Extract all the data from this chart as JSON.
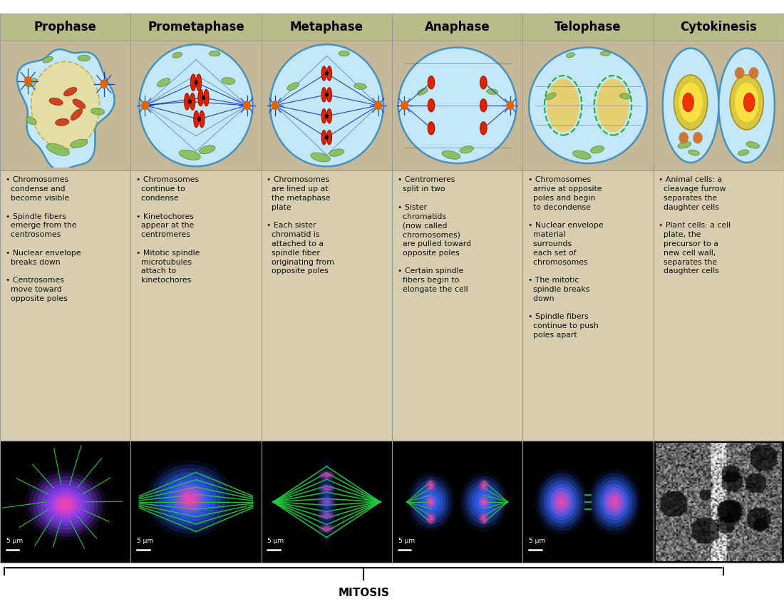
{
  "phases": [
    "Prophase",
    "Prometaphase",
    "Metaphase",
    "Anaphase",
    "Telophase",
    "Cytokinesis"
  ],
  "header_bg": "#b8bc8a",
  "cell_bg": "#c5b898",
  "text_bg": "#d8cdb0",
  "border_color": "#999999",
  "header_text_color": "#000000",
  "header_fontsize": 12,
  "bullet_fontsize": 7.8,
  "mitosis_label": "MITOSIS",
  "scale_label": "5 μm",
  "descriptions": [
    "• Chromosomes\n  condense and\n  become visible\n\n• Spindle fibers\n  emerge from the\n  centrosomes\n\n• Nuclear envelope\n  breaks down\n\n• Centrosomes\n  move toward\n  opposite poles",
    "• Chromosomes\n  continue to\n  condense\n\n• Kinetochores\n  appear at the\n  centromeres\n\n• Mitotic spindle\n  microtubules\n  attach to\n  kinetochores",
    "• Chromosomes\n  are lined up at\n  the metaphase\n  plate\n\n• Each sister\n  chromatid is\n  attached to a\n  spindle fiber\n  originating from\n  opposite poles",
    "• Centromeres\n  split in two\n\n• Sister\n  chromatids\n  (now called\n  chromosomes)\n  are pulled toward\n  opposite poles\n\n• Certain spindle\n  fibers begin to\n  elongate the cell",
    "• Chromosomes\n  arrive at opposite\n  poles and begin\n  to decondense\n\n• Nuclear envelope\n  material\n  surrounds\n  each set of\n  chromosomes\n\n• The mitotic\n  spindle breaks\n  down\n\n• Spindle fibers\n  continue to push\n  poles apart",
    "• Animal cells: a\n  cleavage furrow\n  separates the\n  daughter cells\n\n• Plant cells: a cell\n  plate, the\n  precursor to a\n  new cell wall,\n  separates the\n  daughter cells"
  ],
  "background_color": "#ffffff"
}
